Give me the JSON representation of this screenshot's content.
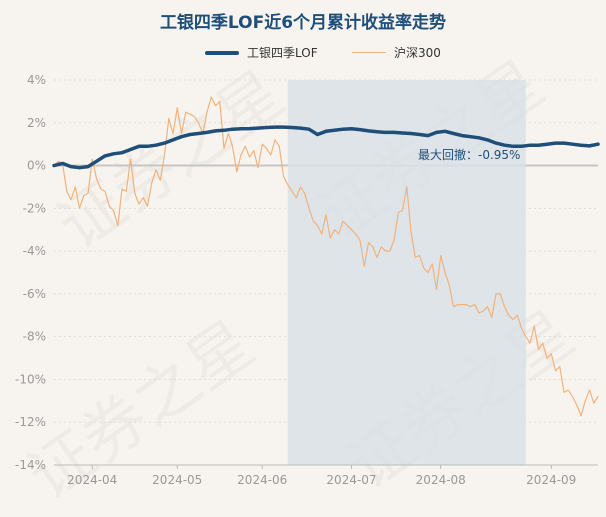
{
  "title": "工银四季LOF近6个月累计收益率走势",
  "legend": [
    {
      "name": "工银四季LOF",
      "color": "#1f4e79"
    },
    {
      "name": "沪深300",
      "color": "#f2b27c"
    }
  ],
  "watermark": "证券之星",
  "annotation": "最大回撤：-0.95%",
  "chart_data": {
    "type": "line",
    "title": "工银四季LOF近6个月累计收益率走势",
    "ylim": [
      -14,
      4
    ],
    "yticks": [
      "4%",
      "2%",
      "0%",
      "-2%",
      "-4%",
      "-6%",
      "-8%",
      "-10%",
      "-12%",
      "-14%"
    ],
    "xticks": [
      "2024-04",
      "2024-05",
      "2024-06",
      "2024-07",
      "2024-08",
      "2024-09"
    ],
    "xlim": [
      0,
      128
    ],
    "xtick_positions": [
      9,
      29,
      49,
      70,
      91,
      117
    ],
    "shade_range": [
      55,
      111
    ],
    "zero_line": true,
    "series": [
      {
        "name": "工银四季LOF",
        "color": "#1f4e79",
        "x": [
          0,
          2,
          4,
          6,
          8,
          10,
          12,
          14,
          16,
          18,
          20,
          22,
          24,
          26,
          28,
          30,
          32,
          34,
          36,
          38,
          40,
          42,
          44,
          46,
          48,
          50,
          52,
          54,
          56,
          58,
          60,
          62,
          64,
          66,
          68,
          70,
          72,
          74,
          76,
          78,
          80,
          82,
          84,
          86,
          88,
          90,
          92,
          94,
          96,
          98,
          100,
          102,
          104,
          106,
          108,
          110,
          112,
          114,
          116,
          118,
          120,
          122,
          124,
          126,
          128
        ],
        "values": [
          0.0,
          0.1,
          -0.05,
          -0.1,
          -0.05,
          0.2,
          0.45,
          0.55,
          0.6,
          0.75,
          0.9,
          0.9,
          0.95,
          1.05,
          1.2,
          1.35,
          1.45,
          1.5,
          1.55,
          1.62,
          1.65,
          1.7,
          1.72,
          1.73,
          1.75,
          1.78,
          1.8,
          1.8,
          1.78,
          1.75,
          1.7,
          1.45,
          1.6,
          1.65,
          1.7,
          1.72,
          1.68,
          1.62,
          1.58,
          1.55,
          1.55,
          1.52,
          1.5,
          1.45,
          1.4,
          1.55,
          1.6,
          1.5,
          1.4,
          1.35,
          1.3,
          1.2,
          1.05,
          0.95,
          0.9,
          0.9,
          0.95,
          0.95,
          1.0,
          1.05,
          1.05,
          1.0,
          0.95,
          0.92,
          1.0
        ]
      },
      {
        "name": "沪深300",
        "color": "#f2b27c",
        "x": [
          0,
          1,
          2,
          3,
          4,
          5,
          6,
          7,
          8,
          9,
          10,
          11,
          12,
          13,
          14,
          15,
          16,
          17,
          18,
          19,
          20,
          21,
          22,
          23,
          24,
          25,
          26,
          27,
          28,
          29,
          30,
          31,
          32,
          33,
          34,
          35,
          36,
          37,
          38,
          39,
          40,
          41,
          42,
          43,
          44,
          45,
          46,
          47,
          48,
          49,
          50,
          51,
          52,
          53,
          54,
          55,
          56,
          57,
          58,
          59,
          60,
          61,
          62,
          63,
          64,
          65,
          66,
          67,
          68,
          69,
          70,
          71,
          72,
          73,
          74,
          75,
          76,
          77,
          78,
          79,
          80,
          81,
          82,
          83,
          84,
          85,
          86,
          87,
          88,
          89,
          90,
          91,
          92,
          93,
          94,
          95,
          96,
          97,
          98,
          99,
          100,
          101,
          102,
          103,
          104,
          105,
          106,
          107,
          108,
          109,
          110,
          111,
          112,
          113,
          114,
          115,
          116,
          117,
          118,
          119,
          120,
          121,
          122,
          123,
          124,
          125,
          126,
          127,
          128
        ],
        "values": [
          0.0,
          0.2,
          0.1,
          -1.2,
          -1.6,
          -1.0,
          -2.0,
          -1.4,
          -1.3,
          0.3,
          -0.6,
          -1.1,
          -1.2,
          -1.9,
          -2.1,
          -2.8,
          -1.1,
          -1.2,
          0.3,
          -1.3,
          -1.8,
          -1.5,
          -1.9,
          -0.8,
          -0.2,
          -0.7,
          0.5,
          2.2,
          1.5,
          2.7,
          1.5,
          2.5,
          2.4,
          2.3,
          2.0,
          1.5,
          2.5,
          3.2,
          2.8,
          3.0,
          0.8,
          1.5,
          0.9,
          -0.3,
          0.5,
          0.9,
          0.4,
          0.7,
          -0.1,
          1.0,
          0.8,
          0.5,
          1.2,
          0.9,
          -0.5,
          -0.9,
          -1.2,
          -1.5,
          -1.0,
          -1.3,
          -2.0,
          -2.6,
          -2.8,
          -3.2,
          -2.3,
          -3.4,
          -3.0,
          -3.2,
          -2.6,
          -2.8,
          -3.0,
          -3.2,
          -3.5,
          -4.7,
          -3.6,
          -3.8,
          -4.3,
          -3.8,
          -4.0,
          -4.0,
          -3.5,
          -2.2,
          -2.1,
          -1.0,
          -3.1,
          -4.3,
          -4.2,
          -4.8,
          -5.0,
          -4.6,
          -5.8,
          -4.2,
          -5.0,
          -5.6,
          -6.6,
          -6.5,
          -6.5,
          -6.5,
          -6.6,
          -6.5,
          -6.9,
          -6.8,
          -6.6,
          -7.1,
          -6.0,
          -6.0,
          -6.6,
          -7.0,
          -7.2,
          -7.0,
          -7.6,
          -8.0,
          -8.3,
          -7.5,
          -8.6,
          -8.3,
          -9.0,
          -8.8,
          -9.6,
          -9.4,
          -10.6,
          -10.5,
          -10.8,
          -11.2,
          -11.7,
          -11.0,
          -10.5,
          -11.1,
          -10.8
        ]
      }
    ]
  }
}
